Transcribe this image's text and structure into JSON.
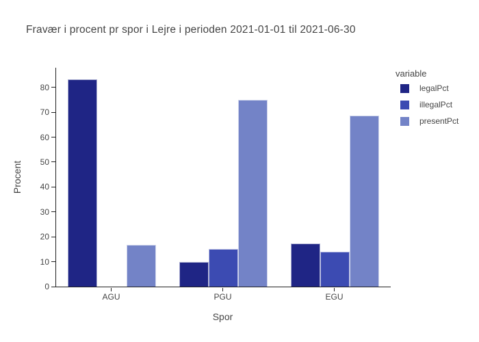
{
  "chart_data": {
    "type": "bar",
    "barmode": "group",
    "title": "Fravær i procent pr spor i Lejre i perioden 2021-01-01 til 2021-06-30",
    "xlabel": "Spor",
    "ylabel": "Procent",
    "categories": [
      "AGU",
      "PGU",
      "EGU"
    ],
    "series": [
      {
        "name": "legalPct",
        "color": "#1f2585",
        "values": [
          83.2,
          9.9,
          17.4
        ]
      },
      {
        "name": "illegalPct",
        "color": "#3c4bb2",
        "values": [
          0,
          15,
          14
        ]
      },
      {
        "name": "presentPct",
        "color": "#7383c7",
        "values": [
          16.8,
          75,
          68.6
        ]
      }
    ],
    "ylim": [
      0,
      87.9
    ],
    "yticks": [
      0,
      10,
      20,
      30,
      40,
      50,
      60,
      70,
      80
    ],
    "grid": false,
    "legend": {
      "title": "variable",
      "position": "right"
    }
  }
}
